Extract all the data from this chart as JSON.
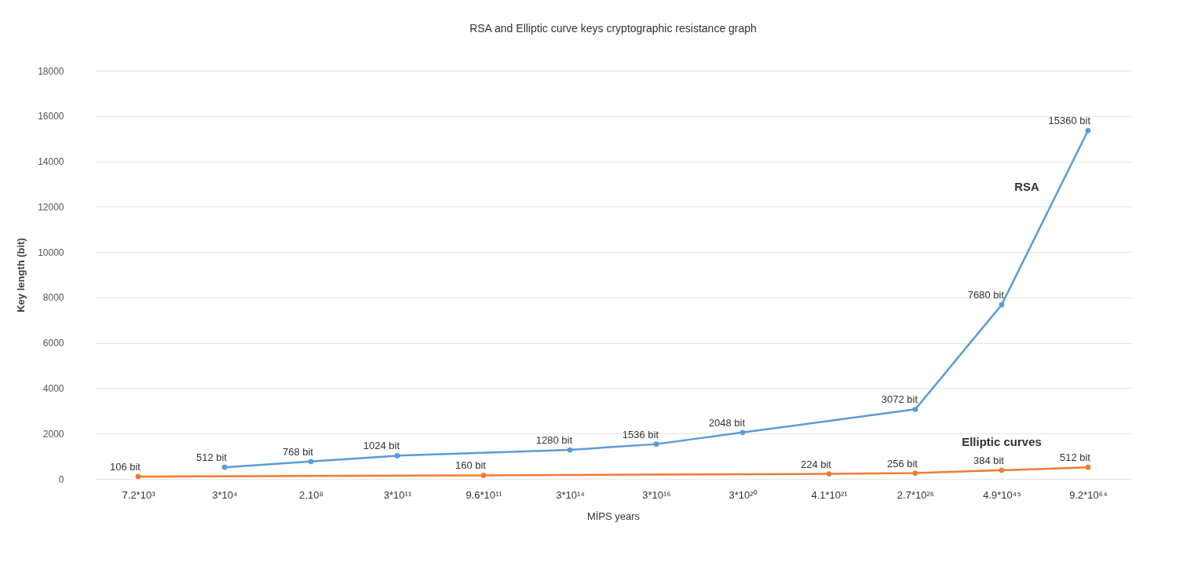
{
  "chart_data": {
    "type": "line",
    "title": "RSA and Elliptic curve keys cryptographic resistance graph",
    "xlabel": "MİPS years",
    "ylabel": "Key length (bit)",
    "categories": [
      "7.2*10³",
      "3*10⁴",
      "2.10⁸",
      "3*10¹¹",
      "9.6*10¹¹",
      "3*10¹⁴",
      "3*10¹⁶",
      "3*10²⁰",
      "4.1*10²¹",
      "2.7*10²⁶",
      "4.9*10⁴⁵",
      "9.2*10⁶⁴"
    ],
    "series": [
      {
        "name": "RSA",
        "color": "#5b9bd5",
        "x": [
          "3*10⁴",
          "2.10⁸",
          "3*10¹¹",
          "3*10¹⁴",
          "3*10¹⁶",
          "3*10²⁰",
          "2.7*10²⁶",
          "4.9*10⁴⁵",
          "9.2*10⁶⁴"
        ],
        "values": [
          512,
          768,
          1024,
          1280,
          1536,
          2048,
          3072,
          7680,
          15360
        ],
        "value_labels": [
          "512 bit",
          "768 bit",
          "1024 bit",
          "1280 bit",
          "1536 bit",
          "2048 bit",
          "3072 bit",
          "7680 bit",
          "15360 bit"
        ]
      },
      {
        "name": "Elliptic curves",
        "color": "#ed7d31",
        "x": [
          "7.2*10³",
          "9.6*10¹¹",
          "4.1*10²¹",
          "2.7*10²⁶",
          "4.9*10⁴⁵",
          "9.2*10⁶⁴"
        ],
        "values": [
          106,
          160,
          224,
          256,
          384,
          512
        ],
        "value_labels": [
          "106 bit",
          "160 bit",
          "224 bit",
          "256 bit",
          "384 bit",
          "512 bit"
        ]
      }
    ],
    "ylim": [
      0,
      18000
    ],
    "yticks": [
      0,
      2000,
      4000,
      6000,
      8000,
      10000,
      12000,
      14000,
      16000,
      18000
    ],
    "grid": "y",
    "legend": false,
    "marker": "circle",
    "line_style": "solid"
  }
}
